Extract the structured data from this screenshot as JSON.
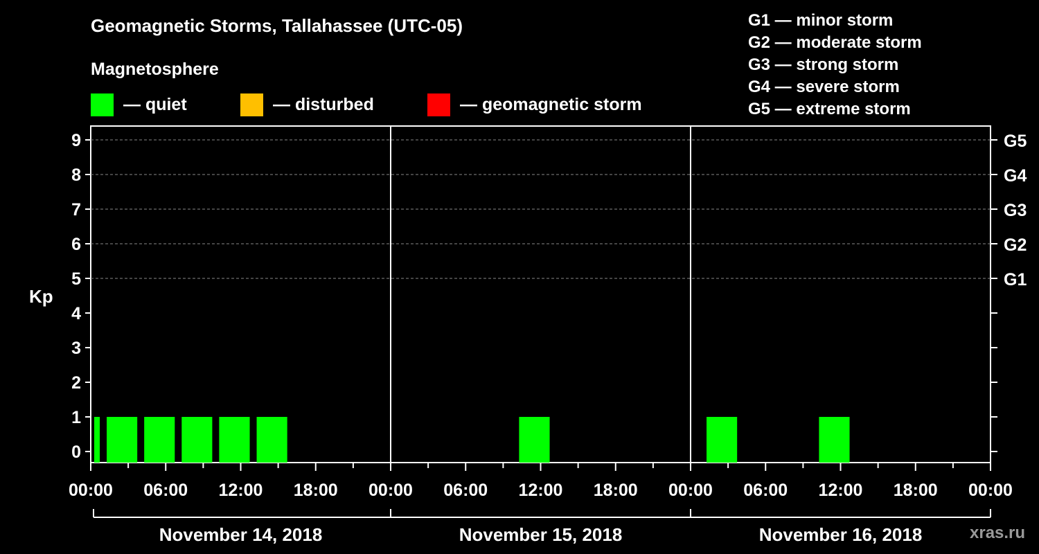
{
  "header": {
    "title": "Geomagnetic Storms, Tallahassee (UTC-05)",
    "subtitle": "Magnetosphere"
  },
  "legend": [
    {
      "label": "— quiet",
      "color": "#00ff00"
    },
    {
      "label": "— disturbed",
      "color": "#ffbf00"
    },
    {
      "label": "— geomagnetic storm",
      "color": "#ff0000"
    }
  ],
  "storm_levels": [
    "G1 — minor storm",
    "G2 — moderate storm",
    "G3 — strong storm",
    "G4 — severe storm",
    "G5 — extreme storm"
  ],
  "watermark": "xras.ru",
  "chart_data": {
    "type": "bar",
    "ylabel": "Kp",
    "ylim": [
      0,
      9
    ],
    "yticks": [
      "0",
      "1",
      "2",
      "3",
      "4",
      "5",
      "6",
      "7",
      "8",
      "9"
    ],
    "right_ticks": [
      {
        "kp": 5,
        "label": "G1"
      },
      {
        "kp": 6,
        "label": "G2"
      },
      {
        "kp": 7,
        "label": "G3"
      },
      {
        "kp": 8,
        "label": "G4"
      },
      {
        "kp": 9,
        "label": "G5"
      }
    ],
    "x_tick_labels": [
      "00:00",
      "06:00",
      "12:00",
      "18:00",
      "00:00",
      "06:00",
      "12:00",
      "18:00",
      "00:00",
      "06:00",
      "12:00",
      "18:00",
      "00:00"
    ],
    "xlim_hours": [
      0,
      72
    ],
    "days": [
      "November 14, 2018",
      "November 15, 2018",
      "November 16, 2018"
    ],
    "grid": "dashed horizontal at Kp 5-9",
    "bar_color": "#00ff00",
    "bars": [
      {
        "start": 0,
        "end": 1,
        "kp": 1
      },
      {
        "start": 1,
        "end": 4,
        "kp": 1
      },
      {
        "start": 4,
        "end": 7,
        "kp": 1
      },
      {
        "start": 7,
        "end": 10,
        "kp": 1
      },
      {
        "start": 10,
        "end": 13,
        "kp": 1
      },
      {
        "start": 13,
        "end": 16,
        "kp": 1
      },
      {
        "start": 34,
        "end": 37,
        "kp": 1
      },
      {
        "start": 49,
        "end": 52,
        "kp": 1
      },
      {
        "start": 58,
        "end": 61,
        "kp": 1
      }
    ]
  }
}
